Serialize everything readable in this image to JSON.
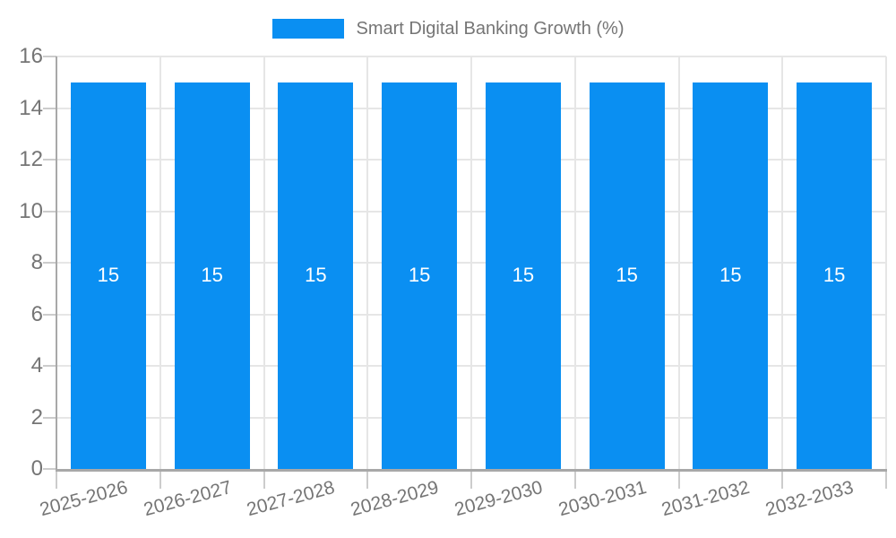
{
  "chart_data": {
    "type": "bar",
    "title": "Smart Digital Banking Growth (%)",
    "legend_label": "Smart Digital Banking Growth (%)",
    "legend_position": "top",
    "categories": [
      "2025-2026",
      "2026-2027",
      "2027-2028",
      "2028-2029",
      "2029-2030",
      "2030-2031",
      "2031-2032",
      "2032-2033"
    ],
    "values": [
      15,
      15,
      15,
      15,
      15,
      15,
      15,
      15
    ],
    "bar_value_labels": [
      "15",
      "15",
      "15",
      "15",
      "15",
      "15",
      "15",
      "15"
    ],
    "xlabel": "",
    "ylabel": "",
    "ylim": [
      0,
      16
    ],
    "yticks": [
      "0",
      "2",
      "4",
      "6",
      "8",
      "10",
      "12",
      "14",
      "16"
    ],
    "ytick_values": [
      0,
      2,
      4,
      6,
      8,
      10,
      12,
      14,
      16
    ],
    "grid": true,
    "colors": {
      "bar": "#0a8ff2",
      "bar_label_text": "#ffffff",
      "tick_text": "#757575",
      "legend_text": "#757575",
      "axis_line": "#a8a8a8",
      "gridline": "#e6e6e6",
      "tick_mark": "#cccccc"
    }
  }
}
